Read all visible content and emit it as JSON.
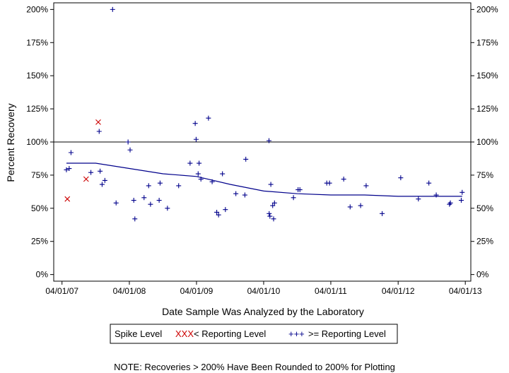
{
  "chart_data": {
    "type": "scatter",
    "xlabel": "Date Sample Was Analyzed by the Laboratory",
    "ylabel": "Percent Recovery",
    "x_tick_labels": [
      "04/01/07",
      "04/01/08",
      "04/01/09",
      "04/01/10",
      "04/01/11",
      "04/01/12",
      "04/01/13"
    ],
    "y_tick_labels": [
      "0%",
      "25%",
      "50%",
      "75%",
      "100%",
      "125%",
      "150%",
      "175%",
      "200%"
    ],
    "y_tick_values": [
      0,
      25,
      50,
      75,
      100,
      125,
      150,
      175,
      200
    ],
    "ylim": [
      -5,
      205
    ],
    "xlim": [
      "2007-02-15",
      "2013-05-01"
    ],
    "reference_line": 100,
    "grid": false,
    "legend": {
      "title": "Spike Level",
      "items": [
        {
          "symbol": "XXX",
          "label": "< Reporting Level",
          "color": "#cc0000"
        },
        {
          "symbol": "+++",
          "label": ">= Reporting Level",
          "color": "#00008b"
        }
      ]
    },
    "note": "NOTE: Recoveries > 200% Have Been Rounded to 200% for Plotting",
    "series": [
      {
        "marker": "x",
        "color": "#cc0000",
        "points": [
          {
            "x": "2007-04-30",
            "y": 57
          },
          {
            "x": "2007-08-10",
            "y": 72
          },
          {
            "x": "2007-10-15",
            "y": 115
          }
        ]
      },
      {
        "marker": "+",
        "color": "#00008b",
        "points": [
          {
            "x": "2007-04-25",
            "y": 79
          },
          {
            "x": "2007-05-10",
            "y": 80
          },
          {
            "x": "2007-05-20",
            "y": 92
          },
          {
            "x": "2007-09-05",
            "y": 77
          },
          {
            "x": "2007-10-20",
            "y": 108
          },
          {
            "x": "2007-10-25",
            "y": 78
          },
          {
            "x": "2007-11-05",
            "y": 68
          },
          {
            "x": "2007-11-20",
            "y": 71
          },
          {
            "x": "2008-01-01",
            "y": 200
          },
          {
            "x": "2008-01-20",
            "y": 54
          },
          {
            "x": "2008-03-25",
            "y": 100
          },
          {
            "x": "2008-04-05",
            "y": 94
          },
          {
            "x": "2008-04-25",
            "y": 56
          },
          {
            "x": "2008-05-01",
            "y": 42
          },
          {
            "x": "2008-06-20",
            "y": 58
          },
          {
            "x": "2008-07-15",
            "y": 67
          },
          {
            "x": "2008-07-25",
            "y": 53
          },
          {
            "x": "2008-09-10",
            "y": 56
          },
          {
            "x": "2008-09-15",
            "y": 69
          },
          {
            "x": "2008-10-25",
            "y": 50
          },
          {
            "x": "2008-12-25",
            "y": 67
          },
          {
            "x": "2009-02-25",
            "y": 84
          },
          {
            "x": "2009-03-25",
            "y": 114
          },
          {
            "x": "2009-03-30",
            "y": 102
          },
          {
            "x": "2009-04-10",
            "y": 76
          },
          {
            "x": "2009-04-15",
            "y": 84
          },
          {
            "x": "2009-04-25",
            "y": 72
          },
          {
            "x": "2009-06-05",
            "y": 118
          },
          {
            "x": "2009-06-25",
            "y": 70
          },
          {
            "x": "2009-07-20",
            "y": 47
          },
          {
            "x": "2009-07-30",
            "y": 45
          },
          {
            "x": "2009-08-20",
            "y": 76
          },
          {
            "x": "2009-09-05",
            "y": 49
          },
          {
            "x": "2009-11-01",
            "y": 61
          },
          {
            "x": "2009-12-20",
            "y": 60
          },
          {
            "x": "2009-12-25",
            "y": 87
          },
          {
            "x": "2010-04-30",
            "y": 101
          },
          {
            "x": "2010-05-01",
            "y": 46
          },
          {
            "x": "2010-05-05",
            "y": 44
          },
          {
            "x": "2010-05-10",
            "y": 68
          },
          {
            "x": "2010-05-20",
            "y": 52
          },
          {
            "x": "2010-05-25",
            "y": 42
          },
          {
            "x": "2010-05-30",
            "y": 54
          },
          {
            "x": "2010-09-10",
            "y": 58
          },
          {
            "x": "2010-10-05",
            "y": 64
          },
          {
            "x": "2010-10-15",
            "y": 64
          },
          {
            "x": "2011-03-10",
            "y": 69
          },
          {
            "x": "2011-03-25",
            "y": 69
          },
          {
            "x": "2011-06-10",
            "y": 72
          },
          {
            "x": "2011-07-15",
            "y": 51
          },
          {
            "x": "2011-09-10",
            "y": 52
          },
          {
            "x": "2011-10-10",
            "y": 67
          },
          {
            "x": "2012-01-05",
            "y": 46
          },
          {
            "x": "2012-04-15",
            "y": 73
          },
          {
            "x": "2012-07-20",
            "y": 57
          },
          {
            "x": "2012-09-15",
            "y": 69
          },
          {
            "x": "2012-10-25",
            "y": 60
          },
          {
            "x": "2013-01-05",
            "y": 53
          },
          {
            "x": "2013-01-10",
            "y": 54
          },
          {
            "x": "2013-03-10",
            "y": 56
          },
          {
            "x": "2013-03-15",
            "y": 62
          }
        ]
      }
    ],
    "trend_line": {
      "color": "#00008b",
      "points": [
        {
          "x": "2007-04-25",
          "y": 84
        },
        {
          "x": "2007-10-01",
          "y": 84
        },
        {
          "x": "2008-04-01",
          "y": 80
        },
        {
          "x": "2008-10-01",
          "y": 76
        },
        {
          "x": "2009-04-01",
          "y": 74
        },
        {
          "x": "2009-10-01",
          "y": 68
        },
        {
          "x": "2010-04-01",
          "y": 63
        },
        {
          "x": "2010-10-01",
          "y": 61
        },
        {
          "x": "2011-04-01",
          "y": 60
        },
        {
          "x": "2011-10-01",
          "y": 60
        },
        {
          "x": "2012-04-01",
          "y": 59
        },
        {
          "x": "2012-10-01",
          "y": 59
        },
        {
          "x": "2013-03-15",
          "y": 59
        }
      ]
    }
  }
}
